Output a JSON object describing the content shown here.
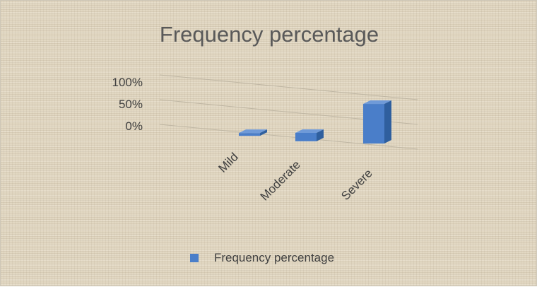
{
  "chart_data": {
    "type": "bar",
    "title": "Frequency percentage",
    "categories": [
      "Mild",
      "Moderate",
      "Severe"
    ],
    "series": [
      {
        "name": "Frequency percentage",
        "values": [
          3,
          17,
          80
        ]
      }
    ],
    "ylim": [
      0,
      100
    ],
    "y_ticks": [
      "100%",
      "50%",
      "0%"
    ],
    "legend_position": "bottom",
    "colors": {
      "bar": "#4a7ec9",
      "bar_top": "#6f9ad8",
      "bar_side": "#2f5f9e",
      "axis_text": "#404040"
    }
  }
}
